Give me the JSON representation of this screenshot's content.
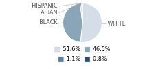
{
  "chart_data": {
    "type": "pie",
    "categories": [
      "WHITE",
      "BLACK",
      "ASIAN",
      "HISPANIC"
    ],
    "values": [
      51.6,
      46.5,
      1.1,
      0.8
    ],
    "value_labels": [
      "51.6%",
      "46.5%",
      "1.1%",
      "0.8%"
    ],
    "colors": [
      "#d4dde8",
      "#8aa5b8",
      "#5b7f99",
      "#2d4f6b"
    ],
    "legend": "bottom"
  }
}
